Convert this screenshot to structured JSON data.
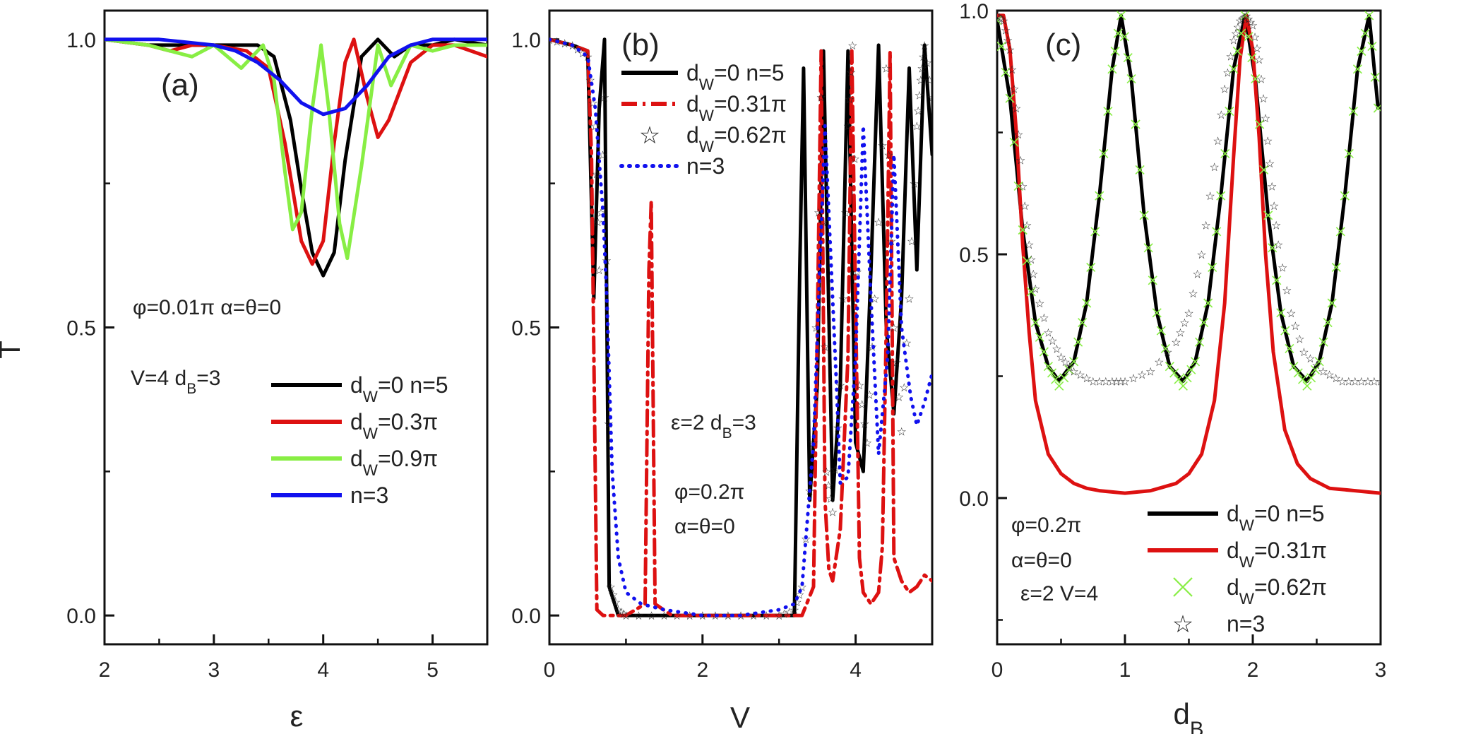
{
  "figure": {
    "ylabel": "T"
  },
  "chart_data": [
    {
      "type": "line",
      "panel": "(a)",
      "xlabel": "ε",
      "ylabel": "T",
      "xlim": [
        2,
        5.5
      ],
      "ylim": [
        -0.05,
        1.05
      ],
      "xticks": [
        "2",
        "3",
        "4",
        "5"
      ],
      "yticks": [
        "0.0",
        "0.5",
        "1.0"
      ],
      "annotations": [
        "φ=0.01π α=θ=0",
        "V=4 d_B=3"
      ],
      "legend_position": "lower-right",
      "series": [
        {
          "name": "d_W=0 n=5",
          "color": "#000000",
          "style": "solid",
          "x": [
            2.0,
            2.4,
            2.8,
            3.1,
            3.4,
            3.55,
            3.7,
            3.8,
            3.9,
            4.0,
            4.1,
            4.2,
            4.35,
            4.5,
            4.65,
            4.8,
            5.0,
            5.2,
            5.5
          ],
          "y": [
            1.0,
            0.99,
            0.99,
            0.99,
            0.99,
            0.97,
            0.86,
            0.74,
            0.63,
            0.59,
            0.63,
            0.79,
            0.97,
            1.0,
            0.97,
            0.99,
            0.99,
            1.0,
            0.99
          ]
        },
        {
          "name": "d_W=0.3π",
          "color": "#dd1111",
          "style": "solid",
          "x": [
            2.0,
            2.4,
            2.6,
            2.8,
            3.0,
            3.3,
            3.5,
            3.65,
            3.8,
            3.9,
            4.0,
            4.1,
            4.2,
            4.28,
            4.4,
            4.5,
            4.6,
            4.8,
            5.0,
            5.2,
            5.5
          ],
          "y": [
            1.0,
            0.99,
            0.98,
            0.99,
            0.99,
            0.98,
            0.95,
            0.82,
            0.65,
            0.61,
            0.65,
            0.82,
            0.96,
            1.0,
            0.9,
            0.83,
            0.86,
            0.96,
            0.99,
            0.99,
            0.97
          ]
        },
        {
          "name": "d_W=0.9π",
          "color": "#88ee44",
          "style": "solid",
          "x": [
            2.0,
            2.4,
            2.6,
            2.8,
            3.0,
            3.25,
            3.45,
            3.55,
            3.65,
            3.72,
            3.8,
            3.9,
            3.98,
            4.05,
            4.15,
            4.22,
            4.35,
            4.5,
            4.62,
            4.8,
            5.0,
            5.2,
            5.5
          ],
          "y": [
            1.0,
            0.99,
            0.98,
            0.97,
            0.99,
            0.95,
            0.99,
            0.93,
            0.77,
            0.67,
            0.7,
            0.88,
            0.99,
            0.88,
            0.68,
            0.62,
            0.78,
            0.99,
            0.92,
            0.99,
            0.98,
            0.99,
            0.99
          ]
        },
        {
          "name": "n=3",
          "color": "#1111ee",
          "style": "solid",
          "x": [
            2.0,
            2.5,
            3.0,
            3.2,
            3.4,
            3.6,
            3.8,
            4.0,
            4.2,
            4.4,
            4.6,
            4.8,
            5.0,
            5.2,
            5.5
          ],
          "y": [
            1.0,
            1.0,
            0.99,
            0.98,
            0.96,
            0.93,
            0.89,
            0.87,
            0.88,
            0.92,
            0.97,
            0.99,
            1.0,
            1.0,
            1.0
          ]
        }
      ]
    },
    {
      "type": "line",
      "panel": "(b)",
      "xlabel": "V",
      "xlim": [
        0,
        5
      ],
      "ylim": [
        -0.05,
        1.05
      ],
      "xticks": [
        "0",
        "2",
        "4"
      ],
      "yticks": [
        "0.0",
        "0.5",
        "1.0"
      ],
      "annotations": [
        "ε=2 d_B=3",
        "φ=0.2π",
        "α=θ=0"
      ],
      "legend_position": "top-center",
      "series": [
        {
          "name": "d_W=0 n=5",
          "color": "#000000",
          "style": "solid",
          "x": [
            0,
            0.3,
            0.5,
            0.58,
            0.65,
            0.72,
            0.78,
            0.9,
            1.2,
            2.0,
            3.0,
            3.2,
            3.27,
            3.32,
            3.4,
            3.5,
            3.58,
            3.7,
            3.8,
            3.9,
            4.0,
            4.1,
            4.2,
            4.3,
            4.4,
            4.5,
            4.6,
            4.7,
            4.8,
            4.9,
            5.0
          ],
          "y": [
            1.0,
            0.99,
            0.98,
            0.55,
            0.88,
            1.0,
            0.05,
            0.0,
            0.0,
            0.0,
            0.0,
            0.0,
            0.6,
            0.95,
            0.2,
            0.4,
            0.98,
            0.2,
            0.4,
            0.98,
            0.3,
            0.25,
            0.6,
            0.99,
            0.5,
            0.35,
            0.55,
            0.95,
            0.6,
            0.99,
            0.8
          ]
        },
        {
          "name": "d_W=0.31π",
          "color": "#dd1111",
          "style": "dashdot",
          "x": [
            0,
            0.3,
            0.5,
            0.55,
            0.62,
            0.7,
            0.8,
            1.0,
            1.25,
            1.3,
            1.33,
            1.38,
            1.6,
            2.0,
            3.0,
            3.3,
            3.45,
            3.5,
            3.55,
            3.6,
            3.65,
            3.7,
            3.8,
            3.9,
            3.95,
            4.05,
            4.1,
            4.2,
            4.3,
            4.35,
            4.4,
            4.45,
            4.5,
            4.6,
            4.7,
            4.8,
            4.9,
            5.0
          ],
          "y": [
            1.0,
            0.99,
            0.98,
            0.8,
            0.01,
            0.0,
            0.0,
            0.0,
            0.02,
            0.6,
            0.72,
            0.02,
            0.0,
            0.0,
            0.0,
            0.0,
            0.05,
            0.5,
            0.98,
            0.2,
            0.08,
            0.06,
            0.15,
            0.45,
            0.98,
            0.1,
            0.04,
            0.02,
            0.04,
            0.12,
            0.5,
            0.98,
            0.1,
            0.06,
            0.04,
            0.05,
            0.07,
            0.06
          ]
        },
        {
          "name": "d_W=0.62π",
          "color": "#88ee44",
          "style": "stars",
          "x": [
            0,
            0.3,
            0.5,
            0.6,
            0.65,
            0.72,
            0.8,
            0.9,
            1.0,
            1.5,
            2.0,
            2.5,
            3.0,
            3.2,
            3.3,
            3.45,
            3.55,
            3.62,
            3.7,
            3.8,
            3.9,
            3.96,
            4.05,
            4.15,
            4.25,
            4.4,
            4.5,
            4.6,
            4.7,
            4.8,
            4.85,
            4.9,
            5.0
          ],
          "y": [
            1.0,
            0.99,
            0.97,
            0.85,
            0.6,
            0.9,
            0.05,
            0.01,
            0.0,
            0.0,
            0.0,
            0.0,
            0.0,
            0.01,
            0.05,
            0.3,
            0.9,
            0.25,
            0.18,
            0.4,
            0.85,
            0.99,
            0.4,
            0.3,
            0.55,
            0.95,
            0.5,
            0.32,
            0.55,
            0.85,
            0.93,
            0.99,
            0.9
          ]
        },
        {
          "name": "n=3",
          "color": "#1111ee",
          "style": "dotted",
          "x": [
            0,
            0.3,
            0.5,
            0.6,
            0.7,
            0.75,
            0.82,
            0.9,
            1.0,
            1.2,
            1.5,
            2.0,
            2.5,
            3.0,
            3.2,
            3.3,
            3.45,
            3.6,
            3.75,
            3.8,
            3.9,
            4.0,
            4.1,
            4.2,
            4.3,
            4.42,
            4.5,
            4.6,
            4.72,
            4.8,
            4.9,
            5.0
          ],
          "y": [
            1.0,
            0.99,
            0.97,
            0.88,
            0.7,
            0.55,
            0.25,
            0.1,
            0.04,
            0.02,
            0.01,
            0.0,
            0.0,
            0.01,
            0.02,
            0.05,
            0.3,
            0.85,
            0.4,
            0.23,
            0.24,
            0.45,
            0.85,
            0.55,
            0.28,
            0.45,
            0.8,
            0.5,
            0.38,
            0.33,
            0.37,
            0.42
          ]
        }
      ]
    },
    {
      "type": "line",
      "panel": "(c)",
      "xlabel": "d_B",
      "xlim": [
        0,
        3
      ],
      "ylim": [
        -0.3,
        1.0
      ],
      "xticks": [
        "0",
        "1",
        "2",
        "3"
      ],
      "yticks": [
        "0.0",
        "0.5",
        "1.0"
      ],
      "annotations": [
        "φ=0.2π",
        "α=θ=0",
        "ε=2 V=4"
      ],
      "legend_position": "bottom-right",
      "series": [
        {
          "name": "d_W=0 n=5",
          "color": "#000000",
          "style": "solid",
          "x": [
            0.0,
            0.1,
            0.2,
            0.3,
            0.4,
            0.485,
            0.6,
            0.7,
            0.8,
            0.9,
            0.97,
            1.05,
            1.15,
            1.25,
            1.35,
            1.455,
            1.55,
            1.65,
            1.75,
            1.85,
            1.94,
            2.02,
            2.12,
            2.22,
            2.32,
            2.425,
            2.52,
            2.62,
            2.72,
            2.82,
            2.91,
            2.98
          ],
          "y": [
            0.98,
            0.82,
            0.55,
            0.36,
            0.27,
            0.24,
            0.28,
            0.4,
            0.62,
            0.88,
            0.99,
            0.86,
            0.58,
            0.38,
            0.27,
            0.24,
            0.28,
            0.4,
            0.62,
            0.88,
            0.99,
            0.86,
            0.58,
            0.38,
            0.27,
            0.24,
            0.28,
            0.4,
            0.62,
            0.88,
            0.99,
            0.8
          ]
        },
        {
          "name": "d_W=0.31π",
          "color": "#dd1111",
          "style": "solid",
          "x": [
            0.0,
            0.05,
            0.1,
            0.15,
            0.2,
            0.25,
            0.3,
            0.4,
            0.5,
            0.6,
            0.7,
            0.8,
            1.0,
            1.2,
            1.4,
            1.5,
            1.6,
            1.7,
            1.78,
            1.85,
            1.9,
            1.95,
            2.0,
            2.05,
            2.1,
            2.16,
            2.25,
            2.35,
            2.45,
            2.6,
            2.8,
            3.0
          ],
          "y": [
            0.99,
            0.99,
            0.92,
            0.75,
            0.52,
            0.34,
            0.2,
            0.09,
            0.05,
            0.03,
            0.02,
            0.015,
            0.01,
            0.015,
            0.03,
            0.05,
            0.09,
            0.2,
            0.4,
            0.7,
            0.9,
            0.99,
            0.92,
            0.74,
            0.5,
            0.3,
            0.14,
            0.07,
            0.04,
            0.02,
            0.015,
            0.01
          ]
        },
        {
          "name": "d_W=0.62π",
          "color": "#88ee44",
          "style": "cross",
          "x": [
            0.0,
            0.1,
            0.2,
            0.3,
            0.4,
            0.485,
            0.6,
            0.7,
            0.8,
            0.9,
            0.97,
            1.05,
            1.15,
            1.25,
            1.35,
            1.455,
            1.55,
            1.65,
            1.75,
            1.85,
            1.94,
            2.02,
            2.12,
            2.22,
            2.32,
            2.425,
            2.52,
            2.62,
            2.72,
            2.82,
            2.91,
            2.98
          ],
          "y": [
            0.98,
            0.82,
            0.55,
            0.36,
            0.27,
            0.23,
            0.28,
            0.4,
            0.62,
            0.88,
            0.99,
            0.86,
            0.58,
            0.38,
            0.27,
            0.23,
            0.28,
            0.4,
            0.62,
            0.88,
            0.99,
            0.86,
            0.58,
            0.38,
            0.27,
            0.23,
            0.28,
            0.4,
            0.62,
            0.88,
            0.99,
            0.8
          ]
        },
        {
          "name": "n=3",
          "color": "#1111cc",
          "style": "stars",
          "x": [
            0.0,
            0.05,
            0.1,
            0.15,
            0.2,
            0.25,
            0.3,
            0.4,
            0.5,
            0.6,
            0.75,
            0.9,
            1.0,
            1.2,
            1.4,
            1.5,
            1.6,
            1.7,
            1.78,
            1.85,
            1.9,
            1.95,
            2.0,
            2.05,
            2.1,
            2.15,
            2.2,
            2.3,
            2.4,
            2.55,
            2.7,
            2.85,
            3.0
          ],
          "y": [
            0.99,
            0.98,
            0.92,
            0.8,
            0.64,
            0.52,
            0.43,
            0.34,
            0.29,
            0.26,
            0.24,
            0.24,
            0.24,
            0.26,
            0.32,
            0.38,
            0.5,
            0.68,
            0.84,
            0.94,
            0.98,
            0.99,
            0.97,
            0.9,
            0.78,
            0.64,
            0.52,
            0.38,
            0.3,
            0.26,
            0.24,
            0.24,
            0.24
          ]
        }
      ]
    }
  ]
}
